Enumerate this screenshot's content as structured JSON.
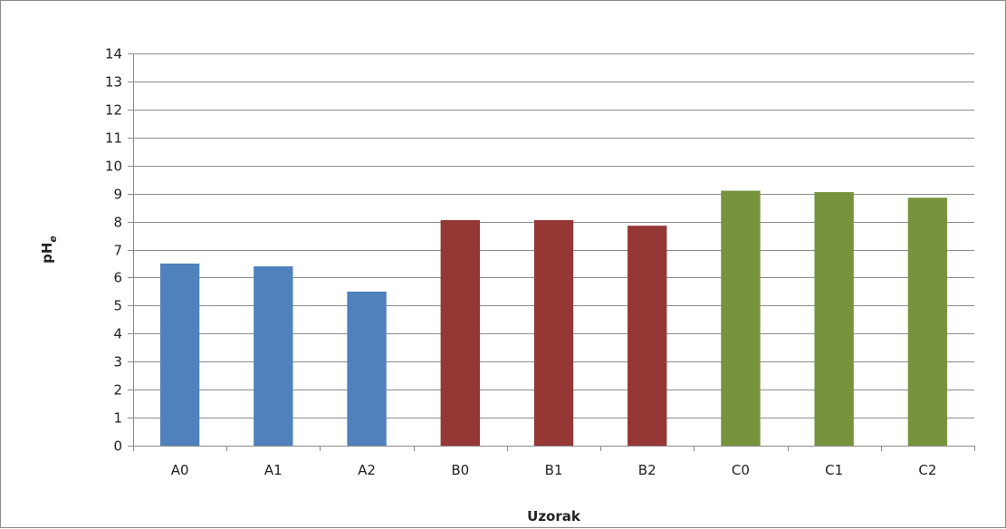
{
  "chart_data": {
    "type": "bar",
    "title": "",
    "xlabel": "Uzorak",
    "ylabel_main": "pH",
    "ylabel_sub": "e",
    "ylim": [
      0,
      14
    ],
    "ytick_step": 1,
    "grid": true,
    "legend": "none",
    "categories": [
      "A0",
      "A1",
      "A2",
      "B0",
      "B1",
      "B2",
      "C0",
      "C1",
      "C2"
    ],
    "values": [
      6.5,
      6.4,
      5.5,
      8.05,
      8.05,
      7.85,
      9.1,
      9.05,
      8.85
    ],
    "bar_colors": [
      "#4f81bd",
      "#4f81bd",
      "#4f81bd",
      "#953735",
      "#953735",
      "#953735",
      "#77933c",
      "#77933c",
      "#77933c"
    ]
  }
}
